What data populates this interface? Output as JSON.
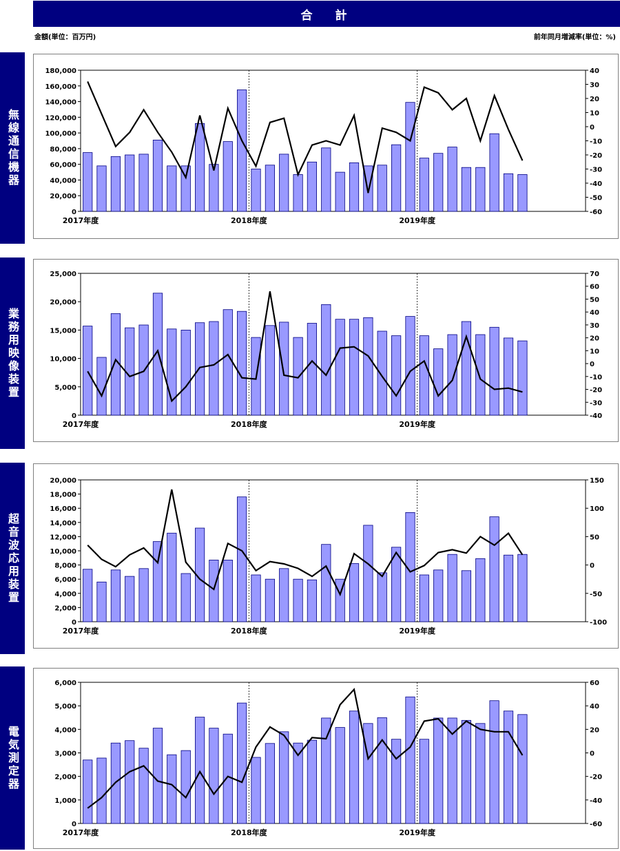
{
  "header": {
    "title": "合　計",
    "unit_left": "金額(単位：百万円)",
    "unit_right": "前年同月増減率(単位：%)"
  },
  "colors": {
    "bar": "#9999ff",
    "bar_border": "#000080",
    "line": "#000000",
    "header_bg": "#000080"
  },
  "chart_data": [
    {
      "type": "bar+line",
      "title": "無線通信機器",
      "x_labels": [
        "2017年度",
        "2018年度",
        "2019年度"
      ],
      "left_ticks": [
        "0",
        "20,000",
        "40,000",
        "60,000",
        "80,000",
        "100,000",
        "120,000",
        "140,000",
        "160,000",
        "180,000"
      ],
      "right_ticks": [
        "-60",
        "-50",
        "-40",
        "-30",
        "-20",
        "-10",
        "0",
        "10",
        "20",
        "30",
        "40"
      ],
      "ylim": [
        0,
        180000
      ],
      "y2lim": [
        -60,
        40
      ],
      "bars": [
        75000,
        58000,
        70000,
        72000,
        73000,
        91000,
        58000,
        58000,
        112000,
        60000,
        89000,
        155000,
        54000,
        59000,
        73000,
        47000,
        63000,
        81000,
        50000,
        62000,
        58000,
        59000,
        85000,
        139000,
        68000,
        74000,
        82000,
        56000,
        56000,
        99000,
        48000,
        47000
      ],
      "line": [
        32,
        9,
        -14,
        -4,
        12,
        -4,
        -18,
        -36,
        8,
        -31,
        13,
        -10,
        -28,
        3,
        6,
        -34,
        -13,
        -10,
        -13,
        8,
        -47,
        -1,
        -4,
        -10,
        28,
        24,
        12,
        20,
        -10,
        22,
        -2,
        -24
      ]
    },
    {
      "type": "bar+line",
      "title": "業務用映像装置",
      "x_labels": [
        "2017年度",
        "2018年度",
        "2019年度"
      ],
      "left_ticks": [
        "0",
        "5,000",
        "10,000",
        "15,000",
        "20,000",
        "25,000"
      ],
      "right_ticks": [
        "-40",
        "-30",
        "-20",
        "-10",
        "0",
        "10",
        "20",
        "30",
        "40",
        "50",
        "60",
        "70"
      ],
      "ylim": [
        0,
        25000
      ],
      "y2lim": [
        -40,
        70
      ],
      "bars": [
        15700,
        10200,
        17900,
        15400,
        15900,
        21500,
        15200,
        15000,
        16300,
        16500,
        18600,
        18300,
        13700,
        15800,
        16400,
        13700,
        16200,
        19500,
        16900,
        16900,
        17200,
        14800,
        14000,
        17400,
        14000,
        11700,
        14200,
        16500,
        14200,
        15500,
        13600,
        13100
      ],
      "line": [
        -6,
        -25,
        3,
        -10,
        -6,
        10,
        -29,
        -18,
        -3,
        -1,
        7,
        -11,
        -12,
        56,
        -9,
        -11,
        2,
        -9,
        12,
        13,
        6,
        -10,
        -25,
        -6,
        2,
        -25,
        -13,
        21,
        -12,
        -20,
        -19,
        -22
      ]
    },
    {
      "type": "bar+line",
      "title": "超音波応用装置",
      "x_labels": [
        "2017年度",
        "2018年度",
        "2019年度"
      ],
      "left_ticks": [
        "0",
        "2,000",
        "4,000",
        "6,000",
        "8,000",
        "10,000",
        "12,000",
        "14,000",
        "16,000",
        "18,000",
        "20,000"
      ],
      "right_ticks": [
        "-100",
        "-50",
        "0",
        "50",
        "100",
        "150"
      ],
      "ylim": [
        0,
        20000
      ],
      "y2lim": [
        -100,
        150
      ],
      "bars": [
        7400,
        5600,
        7300,
        6400,
        7500,
        11300,
        12500,
        6800,
        13200,
        8700,
        8700,
        17600,
        6600,
        6000,
        7500,
        6000,
        5900,
        10900,
        6000,
        8200,
        13600,
        6900,
        10500,
        15400,
        6600,
        7300,
        9500,
        7200,
        8900,
        14800,
        9400,
        9500
      ],
      "line": [
        35,
        10,
        -3,
        18,
        30,
        4,
        133,
        5,
        -25,
        -43,
        38,
        25,
        -10,
        6,
        2,
        -6,
        -20,
        -2,
        -52,
        20,
        2,
        -20,
        22,
        -12,
        -1,
        22,
        27,
        21,
        50,
        35,
        56,
        18
      ]
    },
    {
      "type": "bar+line",
      "title": "電気測定器",
      "x_labels": [
        "2017年度",
        "2018年度",
        "2019年度"
      ],
      "left_ticks": [
        "0",
        "1,000",
        "2,000",
        "3,000",
        "4,000",
        "5,000",
        "6,000"
      ],
      "right_ticks": [
        "-60",
        "-40",
        "-20",
        "0",
        "20",
        "40",
        "60"
      ],
      "ylim": [
        0,
        6000
      ],
      "y2lim": [
        -60,
        60
      ],
      "bars": [
        2700,
        2780,
        3420,
        3520,
        3200,
        4050,
        2920,
        3100,
        4520,
        4050,
        3800,
        5120,
        2810,
        3400,
        3900,
        3420,
        3540,
        4480,
        4080,
        4780,
        4250,
        4500,
        3580,
        5380,
        3580,
        4480,
        4480,
        4380,
        4250,
        5220,
        4780,
        4630
      ],
      "line": [
        -47,
        -38,
        -25,
        -16,
        -11,
        -24,
        -27,
        -38,
        -16,
        -35,
        -20,
        -25,
        5,
        22,
        15,
        -2,
        13,
        12,
        41,
        54,
        -5,
        11,
        -5,
        5,
        27,
        29,
        16,
        27,
        20,
        18,
        18,
        -2
      ]
    }
  ]
}
